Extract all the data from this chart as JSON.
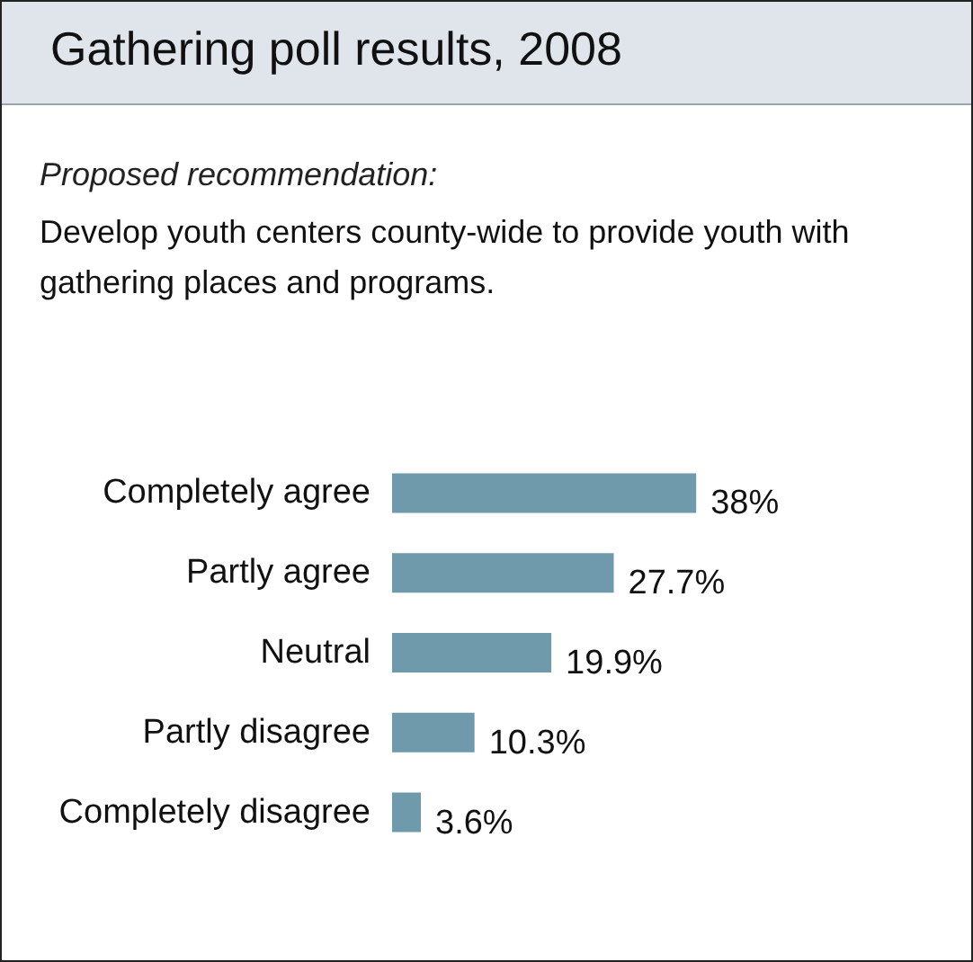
{
  "chart_data": {
    "type": "bar",
    "orientation": "horizontal",
    "title": "Gathering poll results, 2008",
    "subtitle": "Proposed recommendation:",
    "annotations": [
      "Develop youth centers county-wide to provide youth with gathering places and programs."
    ],
    "categories": [
      "Completely agree",
      "Partly agree",
      "Neutral",
      "Partly disagree",
      "Completely disagree"
    ],
    "values": [
      38,
      27.7,
      19.9,
      10.3,
      3.6
    ],
    "value_labels": [
      "38%",
      "27.7%",
      "19.9%",
      "10.3%",
      "3.6%"
    ],
    "color": "#6e9aab"
  }
}
